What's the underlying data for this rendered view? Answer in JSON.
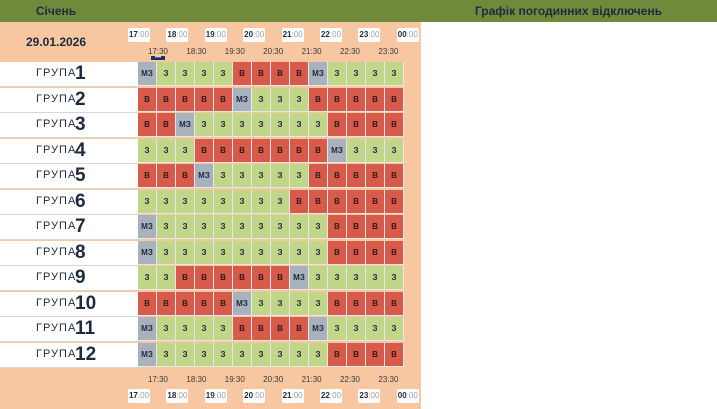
{
  "header": {
    "month": "Січень",
    "title": "Графік погодинних відключень",
    "date": "29.01.2026"
  },
  "hours": [
    {
      "h": "17",
      "m": ":00"
    },
    {
      "h": "18",
      "m": ":00"
    },
    {
      "h": "19",
      "m": ":00"
    },
    {
      "h": "20",
      "m": ":00"
    },
    {
      "h": "21",
      "m": ":00"
    },
    {
      "h": "22",
      "m": ":00"
    },
    {
      "h": "23",
      "m": ":00"
    },
    {
      "h": "00",
      "m": ":00"
    }
  ],
  "half_hours": [
    "17:30",
    "18:30",
    "19:30",
    "20:30",
    "21:30",
    "22:30",
    "23:30"
  ],
  "status_colors": {
    "з": "#c2d68a",
    "в": "#d85a4b",
    "мз": "#a7b2bd"
  },
  "group_label": "ГРУПА",
  "groups": [
    {
      "num": "1",
      "cells": [
        "МЗ",
        "З",
        "З",
        "З",
        "З",
        "В",
        "В",
        "В",
        "В",
        "МЗ",
        "З",
        "З",
        "З",
        "З"
      ]
    },
    {
      "num": "2",
      "cells": [
        "В",
        "В",
        "В",
        "В",
        "В",
        "МЗ",
        "З",
        "З",
        "З",
        "В",
        "В",
        "В",
        "В",
        "В"
      ]
    },
    {
      "num": "3",
      "cells": [
        "В",
        "В",
        "МЗ",
        "З",
        "З",
        "З",
        "З",
        "З",
        "З",
        "З",
        "В",
        "В",
        "В",
        "В"
      ]
    },
    {
      "num": "4",
      "cells": [
        "З",
        "З",
        "З",
        "В",
        "В",
        "В",
        "В",
        "В",
        "В",
        "В",
        "МЗ",
        "З",
        "З",
        "З"
      ]
    },
    {
      "num": "5",
      "cells": [
        "В",
        "В",
        "В",
        "МЗ",
        "З",
        "З",
        "З",
        "З",
        "З",
        "В",
        "В",
        "В",
        "В",
        "В"
      ]
    },
    {
      "num": "6",
      "cells": [
        "З",
        "З",
        "З",
        "З",
        "З",
        "З",
        "З",
        "З",
        "В",
        "В",
        "В",
        "В",
        "В",
        "В"
      ]
    },
    {
      "num": "7",
      "cells": [
        "МЗ",
        "З",
        "З",
        "З",
        "З",
        "З",
        "З",
        "З",
        "З",
        "З",
        "В",
        "В",
        "В",
        "В"
      ]
    },
    {
      "num": "8",
      "cells": [
        "МЗ",
        "З",
        "З",
        "З",
        "З",
        "З",
        "З",
        "З",
        "З",
        "З",
        "В",
        "В",
        "В",
        "В"
      ]
    },
    {
      "num": "9",
      "cells": [
        "З",
        "З",
        "В",
        "В",
        "В",
        "В",
        "В",
        "В",
        "МЗ",
        "З",
        "З",
        "З",
        "З",
        "З"
      ]
    },
    {
      "num": "10",
      "cells": [
        "В",
        "В",
        "В",
        "В",
        "В",
        "МЗ",
        "З",
        "З",
        "З",
        "З",
        "В",
        "В",
        "В",
        "В"
      ]
    },
    {
      "num": "11",
      "cells": [
        "МЗ",
        "З",
        "З",
        "З",
        "З",
        "В",
        "В",
        "В",
        "В",
        "МЗ",
        "З",
        "З",
        "З",
        "З"
      ]
    },
    {
      "num": "12",
      "cells": [
        "МЗ",
        "З",
        "З",
        "З",
        "З",
        "З",
        "З",
        "З",
        "З",
        "З",
        "В",
        "В",
        "В",
        "В"
      ]
    }
  ]
}
